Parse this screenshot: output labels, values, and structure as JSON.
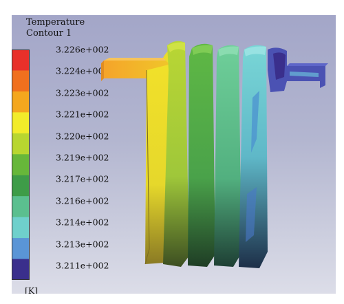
{
  "legend": {
    "title_line1": "Temperature",
    "title_line2": "Contour 1",
    "unit": "[K]",
    "ticks": [
      "3.226e+002",
      "3.224e+002",
      "3.223e+002",
      "3.221e+002",
      "3.220e+002",
      "3.219e+002",
      "3.217e+002",
      "3.216e+002",
      "3.214e+002",
      "3.213e+002",
      "3.211e+002"
    ],
    "colors": [
      "#e8302a",
      "#f0701e",
      "#f4a71e",
      "#f2ec2a",
      "#b8d630",
      "#67b73a",
      "#3e9c48",
      "#5bbf8f",
      "#6fd0cc",
      "#5a95d6",
      "#3a2f8c"
    ]
  },
  "scene": {
    "description_colors": {
      "inlet_pipe": "#f3a72a",
      "coil1": "#e9dc2a",
      "coil2": "#a7cf34",
      "coil3": "#4fb040",
      "coil4": "#57c08d",
      "coil5": "#6bcfd0",
      "outlet_pipe": "#4b52b3"
    }
  }
}
